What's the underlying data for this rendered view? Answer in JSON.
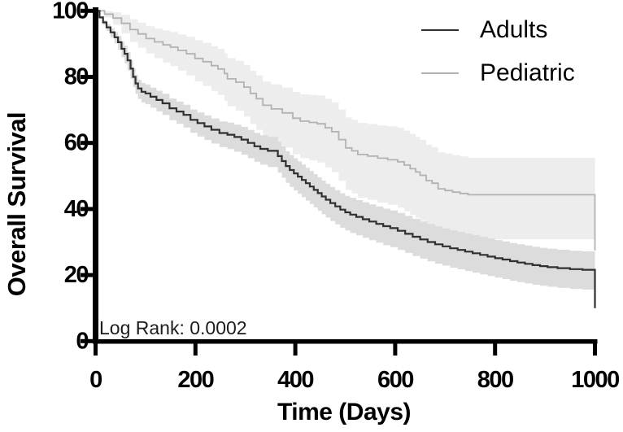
{
  "figure": {
    "background": "#ffffff",
    "axis_color": "#000000",
    "annotation_text": "Log Rank: 0.0002"
  },
  "chart_data": {
    "type": "line",
    "subtype": "kaplan-meier-step-with-confidence-bands",
    "title": "",
    "xlabel": "Time (Days)",
    "ylabel": "Overall Survival",
    "xlim": [
      0,
      1000
    ],
    "ylim": [
      0,
      100
    ],
    "x_ticks": [
      0,
      200,
      400,
      600,
      800,
      1000
    ],
    "y_ticks": [
      0,
      20,
      40,
      60,
      80,
      100
    ],
    "grid": false,
    "legend_position": "top-right",
    "annotation": "Log Rank: 0.0002",
    "series": [
      {
        "name": "Adults",
        "line_color": "#303030",
        "line_width": 2.2,
        "swatch_width": 2.5,
        "ci_color": "#dcdcdc",
        "terminal_drop_to": 10,
        "points": [
          [
            0,
            100
          ],
          [
            8,
            98
          ],
          [
            15,
            96.5
          ],
          [
            22,
            95
          ],
          [
            30,
            93.5
          ],
          [
            38,
            92
          ],
          [
            45,
            90.5
          ],
          [
            52,
            88.5
          ],
          [
            58,
            87
          ],
          [
            64,
            85
          ],
          [
            70,
            82.5
          ],
          [
            75,
            80
          ],
          [
            80,
            78
          ],
          [
            85,
            76.5
          ],
          [
            92,
            75.5
          ],
          [
            100,
            75
          ],
          [
            110,
            74
          ],
          [
            122,
            73
          ],
          [
            134,
            72
          ],
          [
            148,
            70.5
          ],
          [
            162,
            69.5
          ],
          [
            176,
            68.5
          ],
          [
            190,
            67
          ],
          [
            204,
            66
          ],
          [
            218,
            65
          ],
          [
            232,
            64
          ],
          [
            248,
            63
          ],
          [
            264,
            62.5
          ],
          [
            278,
            61.8
          ],
          [
            292,
            61
          ],
          [
            305,
            60
          ],
          [
            318,
            59
          ],
          [
            330,
            58.2
          ],
          [
            345,
            57.6
          ],
          [
            365,
            56
          ],
          [
            373,
            54.5
          ],
          [
            381,
            53
          ],
          [
            389,
            51.8
          ],
          [
            397,
            50.8
          ],
          [
            405,
            49.8
          ],
          [
            413,
            48.8
          ],
          [
            421,
            47.8
          ],
          [
            429,
            46.8
          ],
          [
            437,
            45.8
          ],
          [
            445,
            44.8
          ],
          [
            453,
            43.8
          ],
          [
            461,
            42.8
          ],
          [
            470,
            41.8
          ],
          [
            480,
            40.8
          ],
          [
            490,
            39.8
          ],
          [
            500,
            39
          ],
          [
            510,
            38.3
          ],
          [
            522,
            37.6
          ],
          [
            535,
            36.9
          ],
          [
            548,
            36.2
          ],
          [
            562,
            35.5
          ],
          [
            576,
            34.8
          ],
          [
            590,
            34.2
          ],
          [
            605,
            33.4
          ],
          [
            620,
            32.5
          ],
          [
            635,
            31.6
          ],
          [
            650,
            30.8
          ],
          [
            665,
            30
          ],
          [
            680,
            29.3
          ],
          [
            695,
            28.7
          ],
          [
            710,
            28.1
          ],
          [
            725,
            27.6
          ],
          [
            740,
            27.1
          ],
          [
            755,
            26.6
          ],
          [
            770,
            26.1
          ],
          [
            785,
            25.6
          ],
          [
            800,
            25.1
          ],
          [
            815,
            24.7
          ],
          [
            830,
            24.2
          ],
          [
            845,
            23.8
          ],
          [
            860,
            23.4
          ],
          [
            875,
            23
          ],
          [
            890,
            22.7
          ],
          [
            905,
            22.4
          ],
          [
            925,
            22.1
          ],
          [
            950,
            21.8
          ],
          [
            975,
            21.6
          ],
          [
            1000,
            21.5
          ]
        ],
        "ci_upper_halfwidth": [
          [
            0,
            0
          ],
          [
            60,
            2.5
          ],
          [
            200,
            3.2
          ],
          [
            400,
            4.6
          ],
          [
            600,
            5.4
          ],
          [
            1000,
            5.6
          ]
        ],
        "ci_lower_halfwidth": [
          [
            0,
            0
          ],
          [
            60,
            3
          ],
          [
            200,
            4
          ],
          [
            400,
            5.2
          ],
          [
            600,
            5.8
          ],
          [
            1000,
            6
          ]
        ]
      },
      {
        "name": "Pediatric",
        "line_color": "#b2b2b2",
        "line_width": 1.8,
        "swatch_width": 2,
        "ci_color": "#ededed",
        "terminal_drop_to": 27.5,
        "points": [
          [
            0,
            100
          ],
          [
            18,
            99
          ],
          [
            35,
            97.8
          ],
          [
            52,
            96.2
          ],
          [
            69,
            94.3
          ],
          [
            85,
            93
          ],
          [
            101,
            91.6
          ],
          [
            118,
            90.6
          ],
          [
            135,
            89.7
          ],
          [
            150,
            89
          ],
          [
            165,
            88
          ],
          [
            182,
            87
          ],
          [
            199,
            85.6
          ],
          [
            215,
            84.6
          ],
          [
            232,
            83.4
          ],
          [
            245,
            82.4
          ],
          [
            258,
            81
          ],
          [
            264,
            79.4
          ],
          [
            281,
            78.4
          ],
          [
            297,
            76.9
          ],
          [
            310,
            75
          ],
          [
            322,
            73.4
          ],
          [
            335,
            71.4
          ],
          [
            352,
            70.3
          ],
          [
            374,
            69.1
          ],
          [
            395,
            67.5
          ],
          [
            410,
            66.6
          ],
          [
            428,
            66.2
          ],
          [
            444,
            65.8
          ],
          [
            460,
            64.6
          ],
          [
            473,
            63.4
          ],
          [
            487,
            61
          ],
          [
            501,
            58.5
          ],
          [
            513,
            57.6
          ],
          [
            525,
            56.5
          ],
          [
            545,
            56
          ],
          [
            565,
            55.4
          ],
          [
            585,
            54.9
          ],
          [
            605,
            54.3
          ],
          [
            618,
            53.3
          ],
          [
            630,
            52.2
          ],
          [
            641,
            51.2
          ],
          [
            650,
            50.2
          ],
          [
            662,
            48.6
          ],
          [
            674,
            47.8
          ],
          [
            686,
            46.1
          ],
          [
            700,
            45.6
          ],
          [
            715,
            45.1
          ],
          [
            730,
            44.7
          ],
          [
            746,
            44.3
          ],
          [
            1000,
            44.3
          ]
        ],
        "ci_upper_halfwidth": [
          [
            0,
            0
          ],
          [
            60,
            3
          ],
          [
            200,
            5.5
          ],
          [
            400,
            8
          ],
          [
            520,
            9.5
          ],
          [
            700,
            11.2
          ],
          [
            1000,
            11.2
          ]
        ],
        "ci_lower_halfwidth": [
          [
            0,
            0
          ],
          [
            60,
            3.5
          ],
          [
            200,
            7
          ],
          [
            400,
            11
          ],
          [
            520,
            13
          ],
          [
            620,
            14
          ],
          [
            700,
            13.5
          ],
          [
            1000,
            13.3
          ]
        ]
      }
    ]
  }
}
